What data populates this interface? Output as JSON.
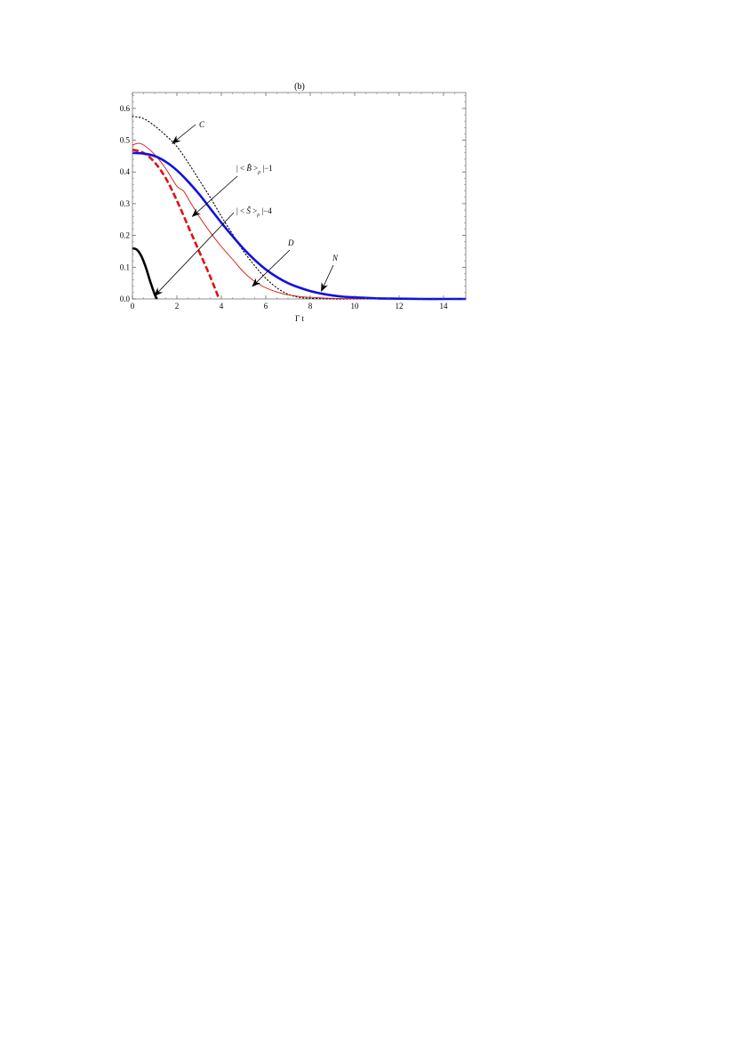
{
  "chart_data": {
    "type": "line",
    "title": "(b)",
    "xlabel": "Γ t",
    "ylabel": "",
    "xlim": [
      0,
      15
    ],
    "ylim": [
      0,
      0.65
    ],
    "grid": false,
    "x_ticks": [
      "0",
      "2",
      "4",
      "6",
      "8",
      "10",
      "12",
      "14"
    ],
    "y_ticks": [
      "0.0",
      "0.1",
      "0.2",
      "0.3",
      "0.4",
      "0.5",
      "0.6"
    ],
    "series": [
      {
        "name": "C",
        "color": "#000000",
        "style": "dotted",
        "x": [
          0,
          0.5,
          1,
          1.5,
          2,
          2.5,
          3,
          3.5,
          4,
          4.5,
          5,
          5.5,
          6,
          6.5,
          7,
          7.5,
          8,
          9,
          10,
          12,
          15
        ],
        "y": [
          0.575,
          0.568,
          0.545,
          0.515,
          0.48,
          0.43,
          0.375,
          0.32,
          0.26,
          0.205,
          0.15,
          0.105,
          0.065,
          0.035,
          0.015,
          0.005,
          0.002,
          0.0,
          0.0,
          0.0,
          0.0
        ]
      },
      {
        "name": "|<B>_ρ|-1",
        "color": "#e01010",
        "style": "dashed",
        "x": [
          0,
          0.5,
          1,
          1.5,
          2,
          2.5,
          3,
          3.5,
          3.9
        ],
        "y": [
          0.47,
          0.46,
          0.43,
          0.38,
          0.31,
          0.23,
          0.15,
          0.07,
          0.0
        ]
      },
      {
        "name": "|<S>_ρ|-4",
        "color": "#000000",
        "style": "solid-thick",
        "x": [
          0,
          0.2,
          0.4,
          0.6,
          0.8,
          1.0,
          1.1
        ],
        "y": [
          0.16,
          0.155,
          0.135,
          0.1,
          0.055,
          0.015,
          0.0
        ]
      },
      {
        "name": "D",
        "color": "#e01010",
        "style": "solid-thin",
        "x": [
          0,
          0.3,
          0.6,
          1,
          1.5,
          2,
          2.3,
          2.6,
          3,
          3.5,
          4,
          4.5,
          5,
          5.5,
          6,
          6.5,
          7,
          7.5,
          8,
          9,
          10,
          12,
          15
        ],
        "y": [
          0.485,
          0.49,
          0.48,
          0.455,
          0.41,
          0.355,
          0.34,
          0.305,
          0.26,
          0.21,
          0.165,
          0.125,
          0.085,
          0.055,
          0.035,
          0.022,
          0.013,
          0.008,
          0.005,
          0.002,
          0.001,
          0.0,
          0.0
        ]
      },
      {
        "name": "N",
        "color": "#1010e0",
        "style": "solid-thick",
        "x": [
          0,
          0.5,
          1,
          1.5,
          2,
          2.5,
          3,
          3.5,
          4,
          4.5,
          5,
          5.5,
          6,
          6.5,
          7,
          7.5,
          8,
          8.5,
          9,
          9.5,
          10,
          11,
          12,
          13,
          14,
          15
        ],
        "y": [
          0.46,
          0.458,
          0.45,
          0.432,
          0.405,
          0.37,
          0.33,
          0.285,
          0.24,
          0.198,
          0.158,
          0.123,
          0.093,
          0.069,
          0.05,
          0.036,
          0.025,
          0.017,
          0.011,
          0.007,
          0.005,
          0.002,
          0.001,
          0.0,
          0.0,
          0.0
        ]
      }
    ],
    "annotations": [
      {
        "label": "C",
        "text": "C",
        "points_to": [
          1.8,
          0.49
        ]
      },
      {
        "label": "B",
        "text_left": "|  < ",
        "glyph": "B̂",
        "text_mid": " >",
        "sub": "ρ",
        "text_right": " |−1",
        "points_to": [
          2.7,
          0.26
        ]
      },
      {
        "label": "S",
        "text_left": "|  < ",
        "glyph": "Ŝ",
        "text_mid": " >",
        "sub": "ρ",
        "text_right": " |−4",
        "points_to": [
          1.0,
          0.01
        ]
      },
      {
        "label": "D",
        "text": "D",
        "points_to": [
          5.4,
          0.04
        ]
      },
      {
        "label": "N",
        "text": "N",
        "points_to": [
          8.5,
          0.025
        ]
      }
    ]
  }
}
